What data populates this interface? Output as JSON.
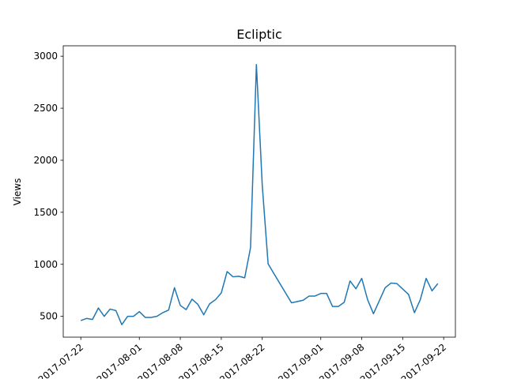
{
  "chart_data": {
    "type": "line",
    "title": "Ecliptic",
    "xlabel": "",
    "ylabel": "Views",
    "x_type": "date",
    "xlim": [
      "2017-07-19",
      "2017-09-24"
    ],
    "ylim": [
      300,
      3100
    ],
    "x_ticks": [
      "2017-07-22",
      "2017-08-01",
      "2017-08-08",
      "2017-08-15",
      "2017-08-22",
      "2017-09-01",
      "2017-09-08",
      "2017-09-15",
      "2017-09-22"
    ],
    "y_ticks": [
      500,
      1000,
      1500,
      2000,
      2500,
      3000
    ],
    "grid": false,
    "legend": "none",
    "color": "#1f77b4",
    "series": [
      {
        "x": [
          "2017-07-22",
          "2017-07-23",
          "2017-07-24",
          "2017-07-25",
          "2017-07-26",
          "2017-07-27",
          "2017-07-28",
          "2017-07-29",
          "2017-07-30",
          "2017-07-31",
          "2017-08-01",
          "2017-08-02",
          "2017-08-03",
          "2017-08-04",
          "2017-08-05",
          "2017-08-06",
          "2017-08-07",
          "2017-08-08",
          "2017-08-09",
          "2017-08-10",
          "2017-08-11",
          "2017-08-12",
          "2017-08-13",
          "2017-08-14",
          "2017-08-15",
          "2017-08-16",
          "2017-08-17",
          "2017-08-18",
          "2017-08-19",
          "2017-08-20",
          "2017-08-21",
          "2017-08-22",
          "2017-08-23",
          "2017-08-24",
          "2017-08-27",
          "2017-08-29",
          "2017-08-30",
          "2017-08-31",
          "2017-09-01",
          "2017-09-02",
          "2017-09-03",
          "2017-09-04",
          "2017-09-05",
          "2017-09-06",
          "2017-09-07",
          "2017-09-08",
          "2017-09-09",
          "2017-09-10",
          "2017-09-12",
          "2017-09-13",
          "2017-09-14",
          "2017-09-16",
          "2017-09-17",
          "2017-09-18",
          "2017-09-19",
          "2017-09-20",
          "2017-09-21"
        ],
        "values": [
          460,
          480,
          470,
          580,
          500,
          570,
          555,
          420,
          500,
          500,
          545,
          490,
          490,
          500,
          535,
          560,
          775,
          605,
          565,
          665,
          615,
          515,
          620,
          660,
          725,
          930,
          880,
          885,
          870,
          1160,
          2920,
          1760,
          1005,
          910,
          630,
          655,
          695,
          695,
          720,
          720,
          595,
          595,
          635,
          840,
          765,
          865,
          660,
          525,
          775,
          820,
          815,
          710,
          535,
          660,
          865,
          745,
          815
        ]
      }
    ]
  }
}
